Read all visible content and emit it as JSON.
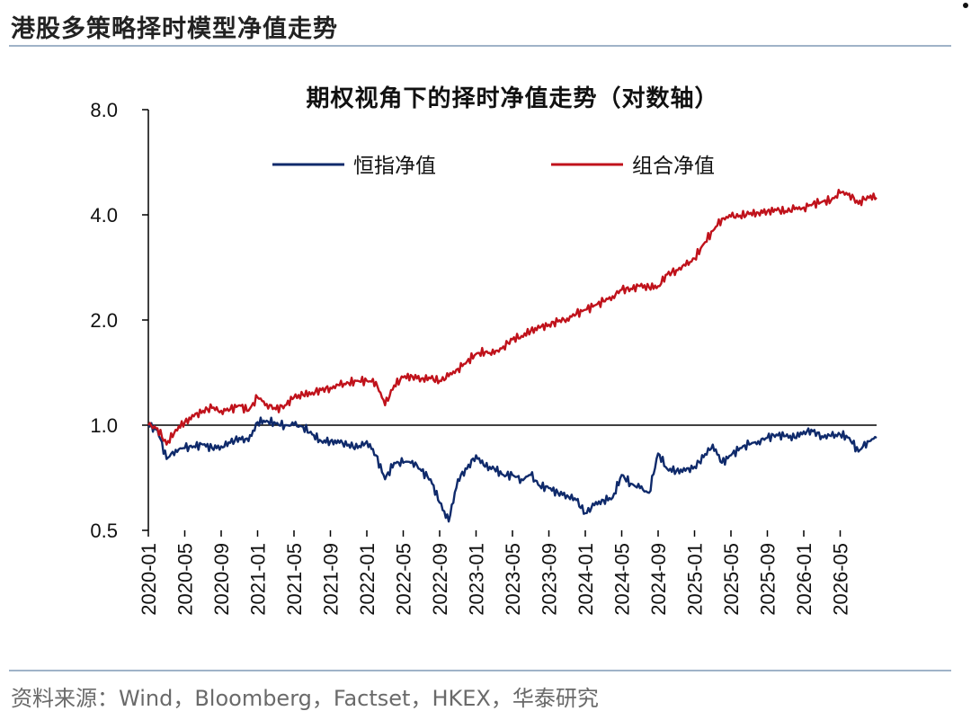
{
  "header": {
    "title": "港股多策略择时模型净值走势"
  },
  "footer": {
    "source": "资料来源：Wind，Bloomberg，Factset，HKEX，华泰研究"
  },
  "chart_data": {
    "type": "line",
    "title": "期权视角下的择时净值走势（对数轴）",
    "y_scale": "log",
    "ylim": [
      0.5,
      8.0
    ],
    "y_ticks": [
      0.5,
      1.0,
      2.0,
      4.0,
      8.0
    ],
    "y_tick_labels": [
      "0.5",
      "1.0",
      "2.0",
      "4.0",
      "8.0"
    ],
    "x_ticks": [
      "2020-01",
      "2020-05",
      "2020-09",
      "2021-01",
      "2021-05",
      "2021-09",
      "2022-01",
      "2022-05",
      "2022-09",
      "2023-01",
      "2023-05",
      "2023-09",
      "2024-01",
      "2024-05",
      "2024-09",
      "2025-01",
      "2025-05",
      "2025-09",
      "2026-01",
      "2026-05"
    ],
    "x_range": [
      "2020-01",
      "2026-09"
    ],
    "legend_position": "top",
    "grid": false,
    "series": [
      {
        "name": "恒指净值",
        "color": "#0f2a6b",
        "x": [
          "2020-01",
          "2020-02",
          "2020-03",
          "2020-04",
          "2020-05",
          "2020-06",
          "2020-07",
          "2020-08",
          "2020-09",
          "2020-10",
          "2020-11",
          "2020-12",
          "2021-01",
          "2021-02",
          "2021-03",
          "2021-04",
          "2021-05",
          "2021-06",
          "2021-07",
          "2021-08",
          "2021-09",
          "2021-10",
          "2021-11",
          "2021-12",
          "2022-01",
          "2022-02",
          "2022-03",
          "2022-04",
          "2022-05",
          "2022-06",
          "2022-07",
          "2022-08",
          "2022-09",
          "2022-10",
          "2022-11",
          "2022-12",
          "2023-01",
          "2023-02",
          "2023-03",
          "2023-04",
          "2023-05",
          "2023-06",
          "2023-07",
          "2023-08",
          "2023-09",
          "2023-10",
          "2023-11",
          "2023-12",
          "2024-01",
          "2024-02",
          "2024-03",
          "2024-04",
          "2024-05",
          "2024-06",
          "2024-07",
          "2024-08",
          "2024-09",
          "2024-10",
          "2024-11",
          "2024-12",
          "2025-01",
          "2025-02",
          "2025-03",
          "2025-04",
          "2025-05",
          "2025-06",
          "2025-07",
          "2025-08",
          "2025-09",
          "2025-10",
          "2025-11",
          "2025-12",
          "2026-01",
          "2026-02",
          "2026-03",
          "2026-04",
          "2026-05",
          "2026-06",
          "2026-07",
          "2026-08",
          "2026-09"
        ],
        "values": [
          1.0,
          0.97,
          0.8,
          0.85,
          0.86,
          0.87,
          0.88,
          0.86,
          0.87,
          0.89,
          0.92,
          0.9,
          1.02,
          1.03,
          1.01,
          1.0,
          1.0,
          0.99,
          0.94,
          0.9,
          0.9,
          0.89,
          0.88,
          0.86,
          0.9,
          0.82,
          0.7,
          0.78,
          0.78,
          0.79,
          0.74,
          0.7,
          0.6,
          0.53,
          0.7,
          0.75,
          0.82,
          0.76,
          0.75,
          0.72,
          0.72,
          0.7,
          0.72,
          0.67,
          0.66,
          0.64,
          0.63,
          0.61,
          0.56,
          0.59,
          0.61,
          0.62,
          0.72,
          0.68,
          0.66,
          0.64,
          0.83,
          0.75,
          0.74,
          0.74,
          0.76,
          0.81,
          0.88,
          0.78,
          0.82,
          0.86,
          0.88,
          0.9,
          0.92,
          0.94,
          0.93,
          0.92,
          0.96,
          0.96,
          0.93,
          0.93,
          0.94,
          0.92,
          0.84,
          0.9,
          0.92
        ]
      },
      {
        "name": "组合净值",
        "color": "#c0121b",
        "x": [
          "2020-01",
          "2020-02",
          "2020-03",
          "2020-04",
          "2020-05",
          "2020-06",
          "2020-07",
          "2020-08",
          "2020-09",
          "2020-10",
          "2020-11",
          "2020-12",
          "2021-01",
          "2021-02",
          "2021-03",
          "2021-04",
          "2021-05",
          "2021-06",
          "2021-07",
          "2021-08",
          "2021-09",
          "2021-10",
          "2021-11",
          "2021-12",
          "2022-01",
          "2022-02",
          "2022-03",
          "2022-04",
          "2022-05",
          "2022-06",
          "2022-07",
          "2022-08",
          "2022-09",
          "2022-10",
          "2022-11",
          "2022-12",
          "2023-01",
          "2023-02",
          "2023-03",
          "2023-04",
          "2023-05",
          "2023-06",
          "2023-07",
          "2023-08",
          "2023-09",
          "2023-10",
          "2023-11",
          "2023-12",
          "2024-01",
          "2024-02",
          "2024-03",
          "2024-04",
          "2024-05",
          "2024-06",
          "2024-07",
          "2024-08",
          "2024-09",
          "2024-10",
          "2024-11",
          "2024-12",
          "2025-01",
          "2025-02",
          "2025-03",
          "2025-04",
          "2025-05",
          "2025-06",
          "2025-07",
          "2025-08",
          "2025-09",
          "2025-10",
          "2025-11",
          "2025-12",
          "2026-01",
          "2026-02",
          "2026-03",
          "2026-04",
          "2026-05",
          "2026-06",
          "2026-07",
          "2026-08",
          "2026-09"
        ],
        "values": [
          1.0,
          0.98,
          0.88,
          0.97,
          1.02,
          1.06,
          1.1,
          1.12,
          1.1,
          1.11,
          1.14,
          1.1,
          1.2,
          1.15,
          1.11,
          1.14,
          1.2,
          1.22,
          1.24,
          1.26,
          1.28,
          1.3,
          1.32,
          1.34,
          1.34,
          1.33,
          1.14,
          1.3,
          1.37,
          1.38,
          1.36,
          1.36,
          1.34,
          1.38,
          1.45,
          1.52,
          1.6,
          1.62,
          1.6,
          1.68,
          1.76,
          1.8,
          1.86,
          1.9,
          1.94,
          1.98,
          2.02,
          2.08,
          2.14,
          2.2,
          2.26,
          2.34,
          2.44,
          2.46,
          2.5,
          2.48,
          2.5,
          2.7,
          2.78,
          2.86,
          3.0,
          3.3,
          3.6,
          3.9,
          3.95,
          3.98,
          4.02,
          4.06,
          4.1,
          4.12,
          4.1,
          4.15,
          4.2,
          4.3,
          4.36,
          4.4,
          4.62,
          4.6,
          4.3,
          4.52,
          4.48
        ]
      }
    ]
  }
}
